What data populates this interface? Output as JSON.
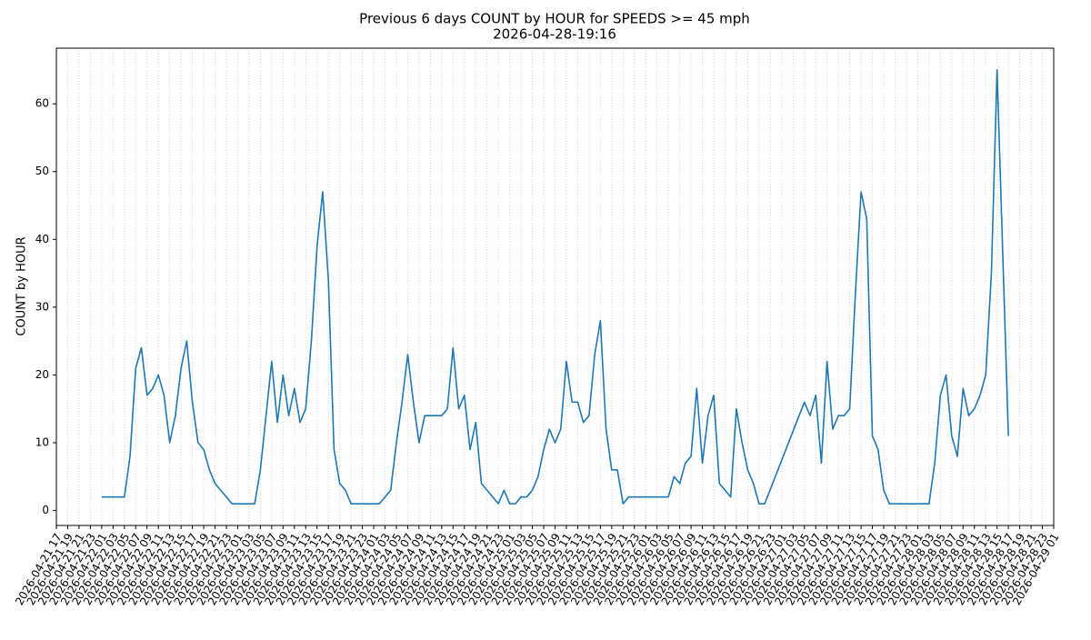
{
  "chart_data": {
    "type": "line",
    "title": "Previous 6 days COUNT by HOUR for SPEEDS >= 45 mph",
    "subtitle": "2026-04-28-19:16",
    "ylabel": "COUNT by HOUR",
    "color": "#1f77b4",
    "grid": true,
    "x": [
      "2026-04-22 01",
      "2026-04-22 02",
      "2026-04-22 03",
      "2026-04-22 04",
      "2026-04-22 05",
      "2026-04-22 06",
      "2026-04-22 07",
      "2026-04-22 08",
      "2026-04-22 09",
      "2026-04-22 10",
      "2026-04-22 11",
      "2026-04-22 12",
      "2026-04-22 13",
      "2026-04-22 14",
      "2026-04-22 15",
      "2026-04-22 16",
      "2026-04-22 17",
      "2026-04-22 18",
      "2026-04-22 19",
      "2026-04-22 20",
      "2026-04-22 21",
      "2026-04-22 22",
      "2026-04-22 23",
      "2026-04-23 00",
      "2026-04-23 01",
      "2026-04-23 02",
      "2026-04-23 03",
      "2026-04-23 04",
      "2026-04-23 05",
      "2026-04-23 06",
      "2026-04-23 07",
      "2026-04-23 08",
      "2026-04-23 09",
      "2026-04-23 10",
      "2026-04-23 11",
      "2026-04-23 12",
      "2026-04-23 13",
      "2026-04-23 14",
      "2026-04-23 15",
      "2026-04-23 16",
      "2026-04-23 17",
      "2026-04-23 18",
      "2026-04-23 19",
      "2026-04-23 20",
      "2026-04-23 21",
      "2026-04-23 22",
      "2026-04-23 23",
      "2026-04-24 00",
      "2026-04-24 01",
      "2026-04-24 02",
      "2026-04-24 03",
      "2026-04-24 04",
      "2026-04-24 05",
      "2026-04-24 06",
      "2026-04-24 07",
      "2026-04-24 08",
      "2026-04-24 09",
      "2026-04-24 10",
      "2026-04-24 11",
      "2026-04-24 12",
      "2026-04-24 13",
      "2026-04-24 14",
      "2026-04-24 15",
      "2026-04-24 16",
      "2026-04-24 17",
      "2026-04-24 18",
      "2026-04-24 19",
      "2026-04-24 20",
      "2026-04-24 21",
      "2026-04-24 22",
      "2026-04-24 23",
      "2026-04-25 00",
      "2026-04-25 01",
      "2026-04-25 02",
      "2026-04-25 03",
      "2026-04-25 04",
      "2026-04-25 05",
      "2026-04-25 06",
      "2026-04-25 07",
      "2026-04-25 08",
      "2026-04-25 09",
      "2026-04-25 10",
      "2026-04-25 11",
      "2026-04-25 12",
      "2026-04-25 13",
      "2026-04-25 14",
      "2026-04-25 15",
      "2026-04-25 16",
      "2026-04-25 17",
      "2026-04-25 18",
      "2026-04-25 19",
      "2026-04-25 20",
      "2026-04-25 21",
      "2026-04-25 22",
      "2026-04-25 23",
      "2026-04-26 00",
      "2026-04-26 01",
      "2026-04-26 02",
      "2026-04-26 03",
      "2026-04-26 04",
      "2026-04-26 05",
      "2026-04-26 06",
      "2026-04-26 07",
      "2026-04-26 08",
      "2026-04-26 09",
      "2026-04-26 10",
      "2026-04-26 11",
      "2026-04-26 12",
      "2026-04-26 13",
      "2026-04-26 14",
      "2026-04-26 15",
      "2026-04-26 16",
      "2026-04-26 17",
      "2026-04-26 18",
      "2026-04-26 19",
      "2026-04-26 20",
      "2026-04-26 21",
      "2026-04-26 22",
      "2026-04-27 05",
      "2026-04-27 06",
      "2026-04-27 07",
      "2026-04-27 08",
      "2026-04-27 09",
      "2026-04-27 10",
      "2026-04-27 11",
      "2026-04-27 12",
      "2026-04-27 13",
      "2026-04-27 14",
      "2026-04-27 15",
      "2026-04-27 16",
      "2026-04-27 17",
      "2026-04-27 18",
      "2026-04-27 19",
      "2026-04-27 20",
      "2026-04-27 21",
      "2026-04-27 22",
      "2026-04-27 23",
      "2026-04-28 00",
      "2026-04-28 01",
      "2026-04-28 02",
      "2026-04-28 03",
      "2026-04-28 04",
      "2026-04-28 05",
      "2026-04-28 06",
      "2026-04-28 07",
      "2026-04-28 08",
      "2026-04-28 09",
      "2026-04-28 10",
      "2026-04-28 11",
      "2026-04-28 12",
      "2026-04-28 13",
      "2026-04-28 14",
      "2026-04-28 15",
      "2026-04-28 16",
      "2026-04-28 17"
    ],
    "values": [
      2,
      2,
      2,
      2,
      2,
      8,
      21,
      24,
      17,
      18,
      20,
      17,
      10,
      14,
      21,
      25,
      16,
      10,
      9,
      6,
      4,
      3,
      2,
      1,
      1,
      1,
      1,
      1,
      6,
      14,
      22,
      13,
      20,
      14,
      18,
      13,
      15,
      25,
      39,
      47,
      34,
      9,
      4,
      3,
      1,
      1,
      1,
      1,
      1,
      1,
      2,
      3,
      10,
      16,
      23,
      16,
      10,
      14,
      14,
      14,
      14,
      15,
      24,
      15,
      17,
      9,
      13,
      4,
      3,
      2,
      1,
      3,
      1,
      1,
      2,
      2,
      3,
      5,
      9,
      12,
      10,
      12,
      22,
      16,
      16,
      13,
      14,
      23,
      28,
      12,
      6,
      6,
      1,
      2,
      2,
      2,
      2,
      2,
      2,
      2,
      2,
      5,
      4,
      7,
      8,
      18,
      7,
      14,
      17,
      4,
      3,
      2,
      15,
      10,
      6,
      4,
      1,
      1,
      16,
      14,
      17,
      7,
      22,
      12,
      14,
      14,
      15,
      32,
      47,
      43,
      11,
      9,
      3,
      1,
      1,
      1,
      1,
      1,
      1,
      1,
      1,
      7,
      17,
      20,
      11,
      8,
      18,
      14,
      15,
      17,
      20,
      35,
      65,
      38,
      11
    ],
    "xlim": [
      "2026-04-21 17",
      "2026-04-29 01"
    ],
    "xticks": [
      "2026-04-21 17",
      "2026-04-21 19",
      "2026-04-21 21",
      "2026-04-21 23",
      "2026-04-22 01",
      "2026-04-22 03",
      "2026-04-22 05",
      "2026-04-22 07",
      "2026-04-22 09",
      "2026-04-22 11",
      "2026-04-22 13",
      "2026-04-22 15",
      "2026-04-22 17",
      "2026-04-22 19",
      "2026-04-22 21",
      "2026-04-22 23",
      "2026-04-23 01",
      "2026-04-23 03",
      "2026-04-23 05",
      "2026-04-23 07",
      "2026-04-23 09",
      "2026-04-23 11",
      "2026-04-23 13",
      "2026-04-23 15",
      "2026-04-23 17",
      "2026-04-23 19",
      "2026-04-23 21",
      "2026-04-23 23",
      "2026-04-24 01",
      "2026-04-24 03",
      "2026-04-24 05",
      "2026-04-24 07",
      "2026-04-24 09",
      "2026-04-24 11",
      "2026-04-24 13",
      "2026-04-24 15",
      "2026-04-24 17",
      "2026-04-24 19",
      "2026-04-24 21",
      "2026-04-24 23",
      "2026-04-25 01",
      "2026-04-25 03",
      "2026-04-25 05",
      "2026-04-25 07",
      "2026-04-25 09",
      "2026-04-25 11",
      "2026-04-25 13",
      "2026-04-25 15",
      "2026-04-25 17",
      "2026-04-25 19",
      "2026-04-25 21",
      "2026-04-25 23",
      "2026-04-26 01",
      "2026-04-26 03",
      "2026-04-26 05",
      "2026-04-26 07",
      "2026-04-26 09",
      "2026-04-26 11",
      "2026-04-26 13",
      "2026-04-26 15",
      "2026-04-26 17",
      "2026-04-26 19",
      "2026-04-26 21",
      "2026-04-26 23",
      "2026-04-27 01",
      "2026-04-27 03",
      "2026-04-27 05",
      "2026-04-27 07",
      "2026-04-27 09",
      "2026-04-27 11",
      "2026-04-27 13",
      "2026-04-27 15",
      "2026-04-27 17",
      "2026-04-27 19",
      "2026-04-27 21",
      "2026-04-27 23",
      "2026-04-28 01",
      "2026-04-28 03",
      "2026-04-28 05",
      "2026-04-28 07",
      "2026-04-28 09",
      "2026-04-28 11",
      "2026-04-28 13",
      "2026-04-28 15",
      "2026-04-28 17",
      "2026-04-28 19",
      "2026-04-28 21",
      "2026-04-28 23",
      "2026-04-29 01"
    ],
    "ylim": [
      -2.2,
      68.2
    ],
    "yticks": [
      0,
      10,
      20,
      30,
      40,
      50,
      60
    ]
  }
}
